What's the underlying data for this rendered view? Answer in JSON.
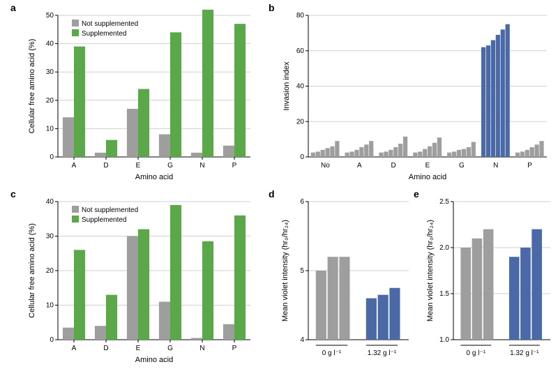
{
  "global": {
    "grid_color": "#cfcfcf",
    "axis_color": "#000000",
    "background_color": "#ffffff",
    "font": "Arial",
    "tick_fontsize": 10,
    "label_fontsize": 11,
    "panel_label_fontsize": 14
  },
  "legend": {
    "not_supplemented": "Not supplemented",
    "supplemented": "Supplemented",
    "not_color": "#9e9e9e",
    "supp_color": "#5aa84a"
  },
  "a": {
    "label": "a",
    "type": "bar",
    "categories": [
      "A",
      "D",
      "E",
      "G",
      "N",
      "P"
    ],
    "not_supplemented": [
      14,
      1.5,
      17,
      8,
      1.5,
      4
    ],
    "supplemented": [
      39,
      6,
      24,
      44,
      52,
      47
    ],
    "bar_colors": [
      "#9e9e9e",
      "#5aa84a"
    ],
    "ylabel": "Cellular free amino acid (%)",
    "xlabel": "Amino acid",
    "ylim": [
      0,
      50
    ],
    "ytick_step": 10,
    "bar_width": 0.35
  },
  "b": {
    "label": "b",
    "type": "bar",
    "groups": [
      "No",
      "A",
      "D",
      "E",
      "G",
      "N",
      "P"
    ],
    "values": [
      [
        2.5,
        3,
        4,
        5,
        6,
        9
      ],
      [
        2.5,
        3,
        4,
        5.5,
        7,
        9
      ],
      [
        2.5,
        3,
        4,
        5.5,
        7.5,
        11.5
      ],
      [
        2.5,
        3,
        4.5,
        6,
        8,
        11
      ],
      [
        2.5,
        3,
        4,
        4.5,
        5.5,
        8.5
      ],
      [
        62,
        63,
        66,
        69,
        72,
        75
      ],
      [
        2.5,
        3,
        4,
        5.5,
        7,
        9
      ]
    ],
    "highlight_group_index": 5,
    "bar_color_default": "#9e9e9e",
    "bar_color_highlight": "#4a69a6",
    "ylabel": "Invasion index",
    "xlabel": "Amino acid",
    "ylim": [
      0,
      80
    ],
    "ytick_step": 20,
    "bar_width": 0.12
  },
  "c": {
    "label": "c",
    "type": "bar",
    "categories": [
      "A",
      "D",
      "E",
      "G",
      "N",
      "P"
    ],
    "not_supplemented": [
      3.5,
      4,
      30,
      11,
      0.5,
      4.5
    ],
    "supplemented": [
      26,
      13,
      32,
      39,
      28.5,
      36
    ],
    "bar_colors": [
      "#9e9e9e",
      "#5aa84a"
    ],
    "ylabel": "Cellular free amino acid (%)",
    "xlabel": "Amino acid",
    "ylim": [
      0,
      40
    ],
    "ytick_step": 10,
    "bar_width": 0.35
  },
  "d": {
    "label": "d",
    "type": "bar",
    "groups": [
      "0 g l⁻¹",
      "1.32 g l⁻¹"
    ],
    "values": [
      [
        5.0,
        5.2,
        5.2
      ],
      [
        4.6,
        4.65,
        4.75
      ]
    ],
    "bar_colors_by_group": [
      "#9e9e9e",
      "#4a69a6"
    ],
    "ylabel": "Mean violet intensity (hr₀/hr₂₄)",
    "ylim": [
      4,
      6
    ],
    "ytick_step": 1,
    "bar_width": 0.25
  },
  "e": {
    "label": "e",
    "type": "bar",
    "groups": [
      "0 g l⁻¹",
      "1.32 g l⁻¹"
    ],
    "values": [
      [
        2.0,
        2.1,
        2.2
      ],
      [
        1.9,
        2.0,
        2.2
      ]
    ],
    "bar_colors_by_group": [
      "#9e9e9e",
      "#4a69a6"
    ],
    "ylabel": "Mean violet intensity (hr₀/hr₂₄)",
    "ylim": [
      1.0,
      2.5
    ],
    "ytick_step": 0.5,
    "bar_width": 0.25
  }
}
